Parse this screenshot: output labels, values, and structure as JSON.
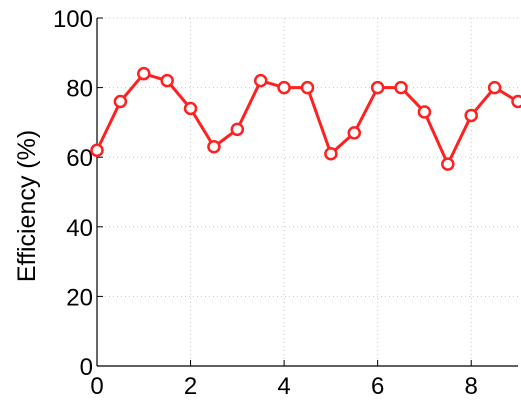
{
  "chart_data": {
    "type": "line",
    "title": "",
    "xlabel": "",
    "ylabel": "Efficiency (%)",
    "xlim": [
      0,
      9
    ],
    "ylim": [
      0,
      100
    ],
    "x_ticks": [
      0,
      2,
      4,
      6,
      8
    ],
    "y_ticks": [
      0,
      20,
      40,
      60,
      80,
      100
    ],
    "grid": "dotted",
    "series": [
      {
        "name": "",
        "color": "#ff2020",
        "marker": "circle-open",
        "x": [
          0,
          0.5,
          1,
          1.5,
          2,
          2.5,
          3,
          3.5,
          4,
          4.5,
          5,
          5.5,
          6,
          6.5,
          7,
          7.5,
          8,
          8.5,
          9
        ],
        "y": [
          62,
          76,
          84,
          82,
          74,
          63,
          68,
          82,
          80,
          80,
          61,
          67,
          80,
          80,
          73,
          58,
          72,
          80,
          76
        ]
      }
    ]
  }
}
